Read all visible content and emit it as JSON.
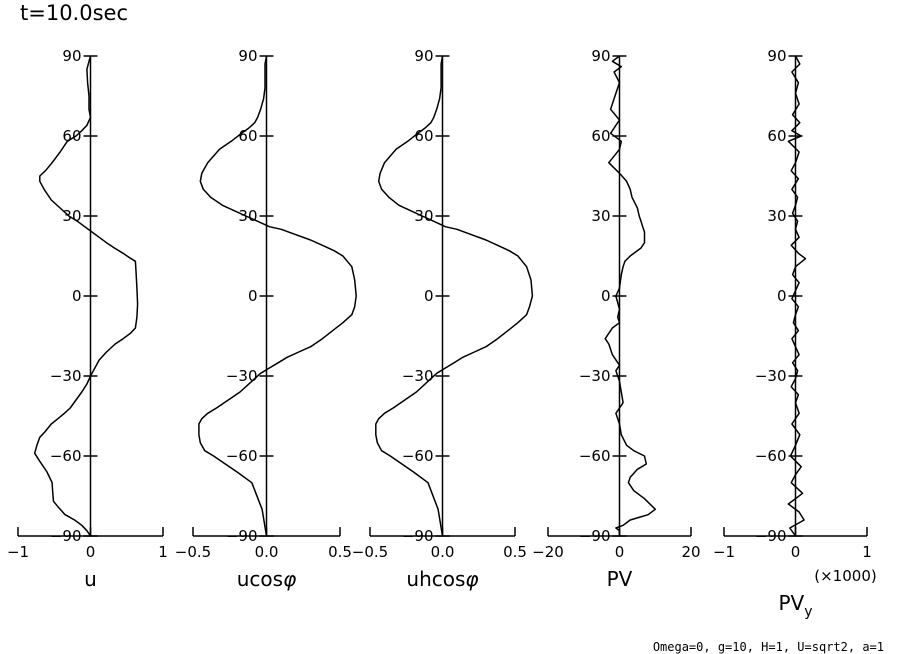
{
  "time_label": "t=10.0sec",
  "footnote": "Omega=0, g=10, H=1, U=sqrt2, a=1",
  "chart_data": [
    {
      "type": "line",
      "title": "",
      "xlabel": "u",
      "xlabel_sub": "",
      "xlabel_extra": "",
      "ylabel": "",
      "xlim": [
        -1,
        1
      ],
      "ylim": [
        -90,
        90
      ],
      "xticks": [
        -1,
        0,
        1
      ],
      "xtick_labels": [
        "−1",
        "0",
        "1"
      ],
      "yticks": [
        90,
        60,
        30,
        0,
        -30,
        -60,
        -90
      ],
      "ytick_labels": [
        "90",
        "60",
        "30",
        "0",
        "−30",
        "−60",
        "−90"
      ],
      "grid": false,
      "series": [
        {
          "x": [
            0.0,
            -0.02,
            -0.05,
            -0.04,
            -0.02,
            -0.02,
            0.0,
            -0.05,
            -0.12,
            -0.2,
            -0.32,
            -0.42,
            -0.53,
            -0.62,
            -0.7,
            -0.7,
            -0.64,
            -0.54,
            -0.42,
            -0.3,
            -0.18,
            -0.08,
            0.02,
            0.12,
            0.22,
            0.33,
            0.45,
            0.56,
            0.62,
            0.63,
            0.64,
            0.65,
            0.64,
            0.62,
            0.55,
            0.45,
            0.34,
            0.22,
            0.12,
            0.04,
            0.0,
            -0.05,
            -0.12,
            -0.2,
            -0.28,
            -0.36,
            -0.45,
            -0.54,
            -0.63,
            -0.7,
            -0.74,
            -0.76,
            -0.77,
            -0.7,
            -0.6,
            -0.53,
            -0.52,
            -0.51,
            -0.45,
            -0.35,
            -0.22,
            -0.12,
            -0.05,
            0.0
          ],
          "y": [
            90,
            88,
            85,
            80,
            75,
            70,
            67,
            64,
            62,
            60,
            58,
            54,
            50,
            47,
            45,
            43,
            40,
            36,
            33,
            30,
            28,
            26,
            24,
            22,
            20,
            18,
            16,
            14,
            13,
            8,
            3,
            -3,
            -8,
            -12,
            -14,
            -16,
            -18,
            -21,
            -24,
            -28,
            -30,
            -33,
            -36,
            -39,
            -42,
            -44,
            -46,
            -48,
            -51,
            -53,
            -56,
            -58,
            -59,
            -62,
            -66,
            -70,
            -74,
            -77,
            -79,
            -82,
            -84,
            -86,
            -88,
            -90
          ]
        }
      ]
    },
    {
      "type": "line",
      "title": "",
      "xlabel": "ucos",
      "xlabel_sub": "",
      "xlabel_extra": "",
      "ylabel": "",
      "xlim": [
        -0.5,
        0.5
      ],
      "ylim": [
        -90,
        90
      ],
      "xticks": [
        -0.5,
        0.0,
        0.5
      ],
      "xtick_labels": [
        "−0.5",
        "0.0",
        "0.5"
      ],
      "yticks": [
        90,
        60,
        30,
        0,
        -30,
        -60,
        -90
      ],
      "ytick_labels": [
        "90",
        "60",
        "30",
        "0",
        "−30",
        "−60",
        "−90"
      ],
      "grid": false,
      "series": [
        {
          "x": [
            0.0,
            -0.01,
            -0.01,
            -0.01,
            -0.02,
            -0.04,
            -0.06,
            -0.08,
            -0.12,
            -0.17,
            -0.24,
            -0.32,
            -0.4,
            -0.44,
            -0.45,
            -0.43,
            -0.38,
            -0.3,
            -0.22,
            -0.14,
            -0.06,
            0.02,
            0.1,
            0.2,
            0.3,
            0.38,
            0.46,
            0.52,
            0.58,
            0.6,
            0.61,
            0.6,
            0.58,
            0.52,
            0.45,
            0.38,
            0.3,
            0.22,
            0.14,
            0.08,
            0.02,
            -0.04,
            -0.1,
            -0.18,
            -0.26,
            -0.34,
            -0.4,
            -0.44,
            -0.46,
            -0.46,
            -0.45,
            -0.42,
            -0.36,
            -0.28,
            -0.2,
            -0.1,
            -0.03,
            0.0
          ],
          "y": [
            90,
            87,
            82,
            78,
            74,
            70,
            67,
            65,
            63,
            61,
            58,
            55,
            50,
            46,
            43,
            40,
            37,
            34,
            32,
            30,
            28,
            26,
            25,
            23,
            21,
            19,
            17,
            15,
            11,
            6,
            0,
            -4,
            -7,
            -10,
            -13,
            -16,
            -19,
            -21,
            -23,
            -25,
            -27,
            -29,
            -32,
            -36,
            -39,
            -42,
            -44,
            -46,
            -48,
            -52,
            -55,
            -58,
            -60,
            -63,
            -66,
            -70,
            -80,
            -90
          ]
        }
      ]
    },
    {
      "type": "line",
      "title": "",
      "xlabel": "uhcos",
      "xlabel_sub": "",
      "xlabel_extra": "",
      "ylabel": "",
      "xlim": [
        -0.5,
        0.5
      ],
      "ylim": [
        -90,
        90
      ],
      "xticks": [
        -0.5,
        0.0,
        0.5
      ],
      "xtick_labels": [
        "−0.5",
        "0.0",
        "0.5"
      ],
      "yticks": [
        90,
        60,
        30,
        0,
        -30,
        -60,
        -90
      ],
      "ytick_labels": [
        "90",
        "60",
        "30",
        "0",
        "−30",
        "−60",
        "−90"
      ],
      "grid": false,
      "series": [
        {
          "x": [
            0.0,
            -0.01,
            -0.01,
            -0.01,
            -0.02,
            -0.04,
            -0.06,
            -0.08,
            -0.12,
            -0.17,
            -0.24,
            -0.32,
            -0.4,
            -0.43,
            -0.44,
            -0.42,
            -0.37,
            -0.3,
            -0.22,
            -0.14,
            -0.06,
            0.02,
            0.1,
            0.2,
            0.3,
            0.38,
            0.46,
            0.52,
            0.58,
            0.61,
            0.62,
            0.6,
            0.58,
            0.52,
            0.45,
            0.38,
            0.3,
            0.22,
            0.14,
            0.08,
            0.02,
            -0.04,
            -0.1,
            -0.18,
            -0.26,
            -0.34,
            -0.4,
            -0.44,
            -0.46,
            -0.46,
            -0.45,
            -0.42,
            -0.36,
            -0.28,
            -0.2,
            -0.1,
            -0.03,
            0.0
          ],
          "y": [
            90,
            87,
            82,
            78,
            74,
            70,
            67,
            65,
            63,
            61,
            58,
            55,
            50,
            46,
            43,
            40,
            37,
            34,
            32,
            30,
            28,
            26,
            25,
            23,
            21,
            19,
            17,
            15,
            11,
            6,
            0,
            -4,
            -7,
            -10,
            -13,
            -16,
            -19,
            -21,
            -23,
            -25,
            -27,
            -29,
            -32,
            -36,
            -39,
            -42,
            -44,
            -46,
            -48,
            -52,
            -55,
            -58,
            -60,
            -63,
            -66,
            -70,
            -80,
            -90
          ]
        }
      ]
    },
    {
      "type": "line",
      "title": "",
      "xlabel": "PV",
      "xlabel_sub": "",
      "xlabel_extra": "",
      "ylabel": "",
      "xlim": [
        -20,
        20
      ],
      "ylim": [
        -90,
        90
      ],
      "xticks": [
        -20,
        0,
        20
      ],
      "xtick_labels": [
        "−20",
        "0",
        "20"
      ],
      "yticks": [
        90,
        60,
        30,
        0,
        -30,
        -60,
        -90
      ],
      "ytick_labels": [
        "90",
        "60",
        "30",
        "0",
        "−30",
        "−60",
        "−90"
      ],
      "grid": false,
      "series": [
        {
          "x": [
            0.0,
            -2.0,
            0.5,
            -1.5,
            0.0,
            -1.0,
            -2.5,
            0.0,
            -1.0,
            -2.5,
            0.5,
            0.0,
            -3.0,
            0.0,
            2.0,
            3.0,
            3.5,
            5.0,
            5.5,
            6.0,
            6.5,
            7.0,
            7.0,
            6.0,
            3.0,
            1.5,
            1.0,
            0.5,
            0.0,
            -1.0,
            0.0,
            -0.5,
            0.0,
            -2.0,
            -3.0,
            -4.0,
            -3.0,
            -2.0,
            0.0,
            -1.0,
            0.0,
            0.5,
            1.0,
            0.0,
            -1.0,
            -0.5,
            0.0,
            0.5,
            2.0,
            4.0,
            7.0,
            7.5,
            5.0,
            3.0,
            2.5,
            4.0,
            7.0,
            10.0,
            8.0,
            3.0,
            1.0,
            -1.0,
            0.0,
            0.0
          ],
          "y": [
            90,
            88,
            86,
            84,
            80,
            76,
            70,
            66,
            64,
            61,
            58,
            55,
            50,
            46,
            43,
            40,
            37,
            33,
            30,
            28,
            26,
            24,
            20,
            18,
            15,
            13,
            11,
            8,
            3,
            0,
            -5,
            -8,
            -10,
            -12,
            -14,
            -16,
            -18,
            -22,
            -26,
            -28,
            -32,
            -36,
            -40,
            -42,
            -44,
            -46,
            -48,
            -52,
            -56,
            -58,
            -60,
            -63,
            -65,
            -68,
            -70,
            -73,
            -76,
            -80,
            -82,
            -84,
            -86,
            -87,
            -88,
            -90
          ]
        }
      ]
    },
    {
      "type": "line",
      "title": "",
      "xlabel": "PV",
      "xlabel_sub": "y",
      "xlabel_extra": "(×1000)",
      "ylabel": "",
      "xlim": [
        -1,
        1
      ],
      "ylim": [
        -90,
        90
      ],
      "xticks": [
        -1,
        0,
        1
      ],
      "xtick_labels": [
        "−1",
        "0",
        "1"
      ],
      "yticks": [
        90,
        60,
        30,
        0,
        -30,
        -60,
        -90
      ],
      "ytick_labels": [
        "90",
        "60",
        "30",
        "0",
        "−30",
        "−60",
        "−90"
      ],
      "grid": false,
      "series": [
        {
          "x": [
            0.0,
            0.06,
            -0.05,
            0.04,
            0.0,
            0.05,
            -0.04,
            0.06,
            -0.05,
            0.08,
            -0.1,
            0.05,
            0.0,
            -0.06,
            0.04,
            -0.05,
            0.03,
            0.0,
            -0.04,
            0.03,
            0.0,
            0.05,
            -0.06,
            0.04,
            0.14,
            0.0,
            -0.04,
            0.05,
            0.0,
            -0.05,
            0.04,
            0.0,
            -0.03,
            0.04,
            -0.05,
            0.0,
            0.05,
            -0.04,
            0.03,
            0.0,
            -0.06,
            0.04,
            0.0,
            0.05,
            -0.05,
            0.06,
            0.0,
            -0.07,
            0.08,
            0.0,
            -0.06,
            0.1,
            -0.1,
            0.05,
            0.12,
            -0.08,
            0.0
          ],
          "y": [
            90,
            87,
            84,
            80,
            76,
            72,
            68,
            65,
            62,
            60,
            58,
            54,
            50,
            47,
            44,
            40,
            37,
            34,
            31,
            28,
            25,
            22,
            19,
            16,
            14,
            11,
            8,
            5,
            2,
            -1,
            -4,
            -7,
            -10,
            -13,
            -16,
            -19,
            -22,
            -25,
            -28,
            -31,
            -34,
            -37,
            -40,
            -44,
            -48,
            -52,
            -56,
            -60,
            -64,
            -67,
            -70,
            -74,
            -78,
            -81,
            -84,
            -87,
            -90
          ]
        }
      ]
    }
  ]
}
